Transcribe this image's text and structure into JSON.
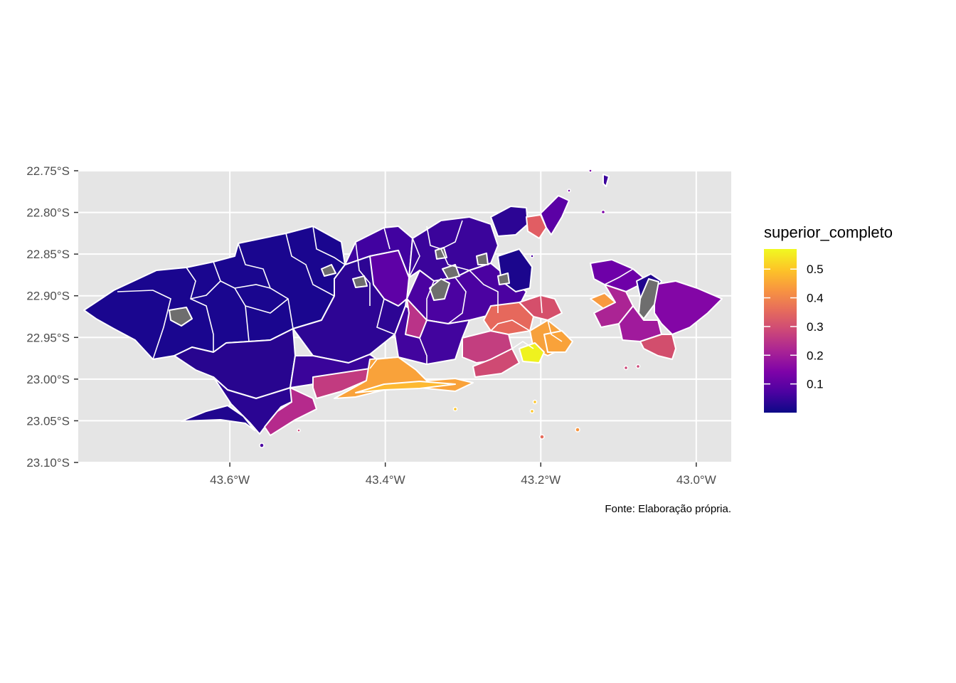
{
  "chart_data": {
    "type": "choropleth map",
    "x_axis": {
      "ticks": [
        {
          "value": -43.6,
          "label": "43.6°W"
        },
        {
          "value": -43.4,
          "label": "43.4°W"
        },
        {
          "value": -43.2,
          "label": "43.2°W"
        },
        {
          "value": -43.0,
          "label": "43.0°W"
        }
      ],
      "xlim": [
        -43.795,
        -42.955
      ]
    },
    "y_axis": {
      "ticks": [
        {
          "value": -22.75,
          "label": "22.75°S"
        },
        {
          "value": -22.8,
          "label": "22.80°S"
        },
        {
          "value": -22.85,
          "label": "22.85°S"
        },
        {
          "value": -22.9,
          "label": "22.90°S"
        },
        {
          "value": -22.95,
          "label": "22.95°S"
        },
        {
          "value": -23.0,
          "label": "23.00°S"
        },
        {
          "value": -23.05,
          "label": "23.05°S"
        },
        {
          "value": -23.1,
          "label": "23.10°S"
        }
      ],
      "ylim": [
        -23.1,
        -22.75
      ]
    },
    "grid": true,
    "legend": {
      "title": "superior_completo",
      "placement": "right",
      "colormap": "plasma",
      "range": [
        0,
        0.57
      ],
      "breaks": [
        {
          "value": 0.1,
          "label": "0.1"
        },
        {
          "value": 0.2,
          "label": "0.2"
        },
        {
          "value": 0.3,
          "label": "0.3"
        },
        {
          "value": 0.4,
          "label": "0.4"
        },
        {
          "value": 0.5,
          "label": "0.5"
        }
      ]
    },
    "caption": "Fonte: Elaboração própria.",
    "missing_color": "#6e6e6e",
    "panel_color": "#e5e5e5"
  }
}
